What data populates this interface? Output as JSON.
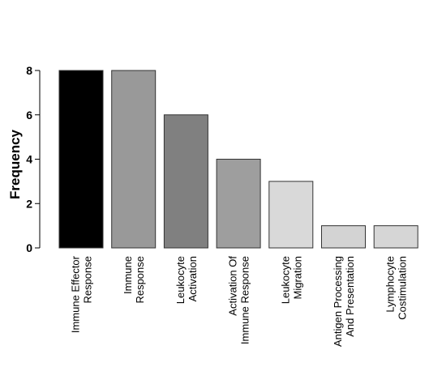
{
  "chart_data": {
    "type": "bar",
    "title": "",
    "xlabel": "",
    "ylabel": "Frequency",
    "ylim": [
      0,
      8
    ],
    "yticks": [
      0,
      2,
      4,
      6,
      8
    ],
    "categories": [
      [
        "Immune Effector",
        "Response"
      ],
      [
        "Immune",
        "Response"
      ],
      [
        "Leukocyte",
        "Activation"
      ],
      [
        "Activation Of",
        "Immune Response"
      ],
      [
        "Leukocyte",
        "Migration"
      ],
      [
        "Antigen Processing",
        "And Presentation"
      ],
      [
        "Lymphocyte",
        "Costimulation"
      ]
    ],
    "values": [
      8,
      8,
      6,
      4,
      3,
      1,
      1
    ],
    "colors": [
      "#000000",
      "#999999",
      "#808080",
      "#9e9e9e",
      "#d9d9d9",
      "#d3d3d3",
      "#d6d6d6"
    ],
    "grid": false,
    "legend": "none"
  }
}
